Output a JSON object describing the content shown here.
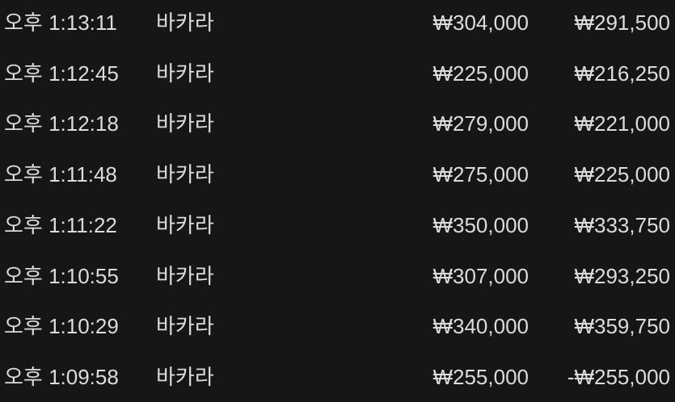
{
  "rows": [
    {
      "time": "오후 1:13:11",
      "game": "바카라",
      "bet": "₩304,000",
      "payout": "₩291,500"
    },
    {
      "time": "오후 1:12:45",
      "game": "바카라",
      "bet": "₩225,000",
      "payout": "₩216,250"
    },
    {
      "time": "오후 1:12:18",
      "game": "바카라",
      "bet": "₩279,000",
      "payout": "₩221,000"
    },
    {
      "time": "오후 1:11:48",
      "game": "바카라",
      "bet": "₩275,000",
      "payout": "₩225,000"
    },
    {
      "time": "오후 1:11:22",
      "game": "바카라",
      "bet": "₩350,000",
      "payout": "₩333,750"
    },
    {
      "time": "오후 1:10:55",
      "game": "바카라",
      "bet": "₩307,000",
      "payout": "₩293,250"
    },
    {
      "time": "오후 1:10:29",
      "game": "바카라",
      "bet": "₩340,000",
      "payout": "₩359,750"
    },
    {
      "time": "오후 1:09:58",
      "game": "바카라",
      "bet": "₩255,000",
      "payout": "-₩255,000"
    }
  ]
}
